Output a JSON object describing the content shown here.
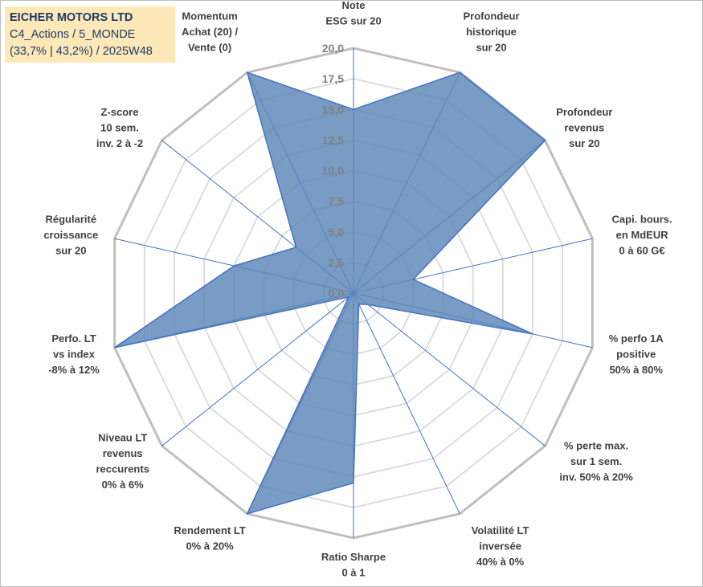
{
  "title": {
    "line1": "EICHER MOTORS LTD",
    "line2": "C4_Actions / 5_MONDE",
    "line3": "(33,7% | 43,2%) / 2025W48"
  },
  "chart_data": {
    "type": "radar",
    "title": "EICHER MOTORS LTD",
    "rlim": [
      0,
      20
    ],
    "rticks": [
      "0,0",
      "2,5",
      "5,0",
      "7,5",
      "10,0",
      "12,5",
      "15,0",
      "17,5",
      "20,0"
    ],
    "grid": true,
    "colors": {
      "fill": "#5b86b7",
      "stroke": "#4472c4",
      "grid": "#c8c8c8",
      "spoke": "#4472c4"
    },
    "categories": [
      [
        "Note",
        "ESG sur 20"
      ],
      [
        "Profondeur",
        "historique",
        "sur 20"
      ],
      [
        "Profondeur",
        "revenus",
        "sur 20"
      ],
      [
        "Capi. bours.",
        "en MdEUR",
        "0 à 60 G€"
      ],
      [
        "% perfo 1A",
        "positive",
        "50% à 80%"
      ],
      [
        "% perte max.",
        "sur 1 sem.",
        "inv. 50% à 20%"
      ],
      [
        "Volatilité LT",
        "inversée",
        "40% à 0%"
      ],
      [
        "Ratio Sharpe",
        "0 à 1"
      ],
      [
        "Rendement LT",
        "0% à 20%"
      ],
      [
        "Niveau LT",
        "revenus",
        "reccurents",
        "0% à 6%"
      ],
      [
        "Perfo. LT",
        "vs index",
        "-8% à 12%"
      ],
      [
        "Régularité",
        "croissance",
        "sur 20"
      ],
      [
        "Z-score",
        "10 sem.",
        "inv. 2 à -2"
      ],
      [
        "Momentum",
        "Achat (20) /",
        "Vente (0)"
      ]
    ],
    "series": [
      {
        "name": "EICHER MOTORS LTD",
        "values": [
          15.0,
          20.0,
          20.0,
          5.0,
          15.0,
          1.5,
          1.0,
          15.5,
          20.0,
          0.5,
          20.0,
          10.0,
          6.0,
          20.0
        ]
      }
    ]
  }
}
